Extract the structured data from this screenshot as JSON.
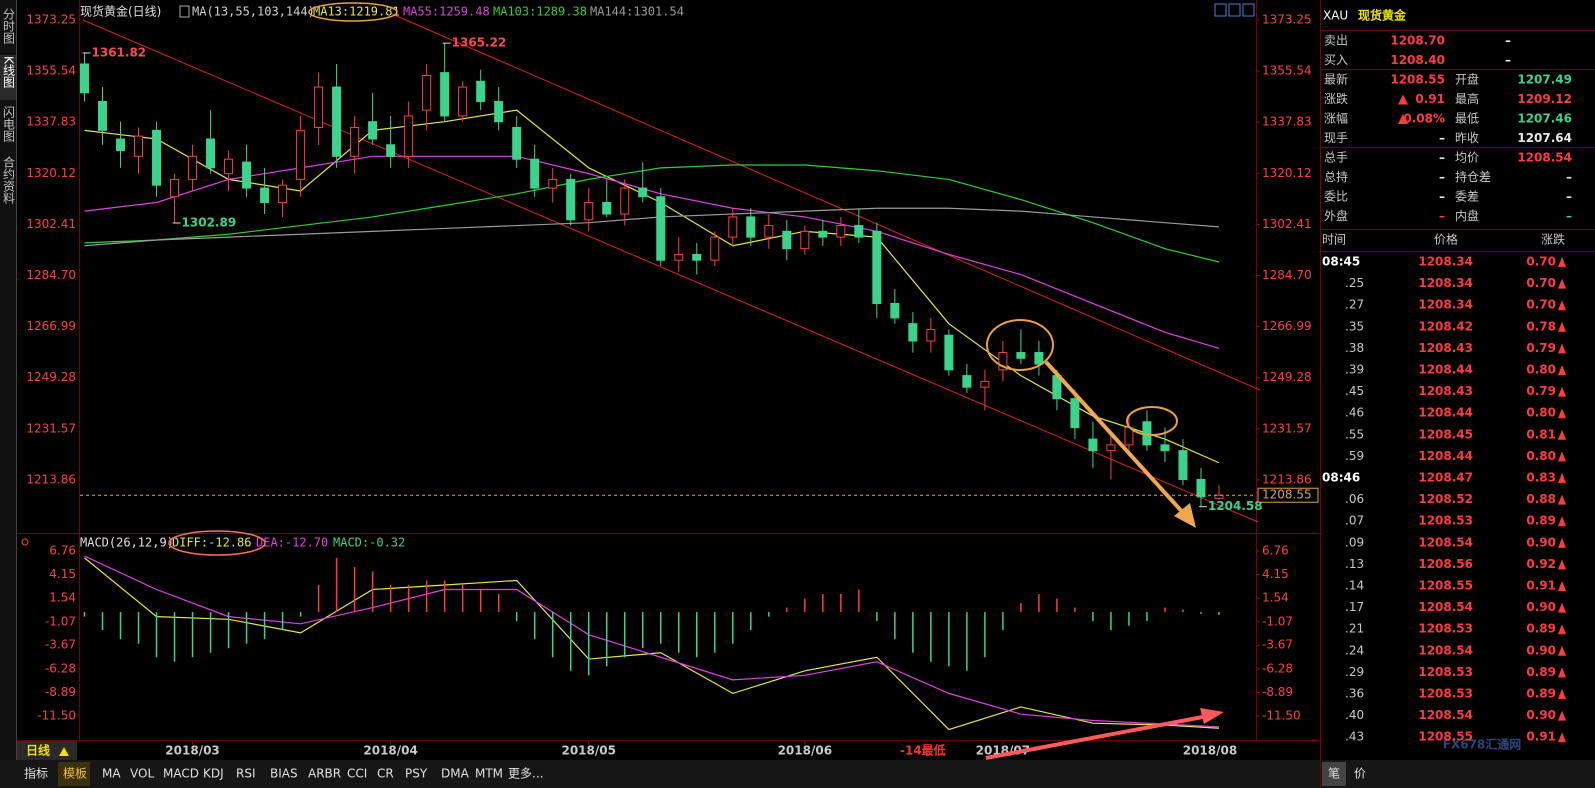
{
  "header": {
    "title": "现货黄金(日线)",
    "indicator": "MA(13,55,103,144)"
  },
  "toolbar": [
    "分时图",
    "K线图",
    "闪电图",
    "合约资料"
  ],
  "chart_data": [
    {
      "type": "candlestick",
      "x": [
        0,
        2,
        4,
        6,
        8,
        10,
        12,
        14,
        16,
        18,
        20,
        22,
        24,
        26,
        28,
        30,
        32,
        34,
        36,
        38,
        40,
        42,
        44,
        46,
        48,
        50,
        52,
        54,
        56,
        58,
        60,
        62,
        64,
        66,
        68,
        70,
        72,
        74,
        76,
        78,
        80,
        82,
        84,
        86,
        88,
        90,
        92,
        94,
        96,
        98,
        100,
        102,
        104,
        106,
        108,
        110,
        112,
        114,
        116,
        118,
        120,
        122,
        124,
        126
      ],
      "open": [
        1358,
        1345,
        1332,
        1326,
        1335,
        1312,
        1318,
        1332,
        1320,
        1324,
        1315,
        1310,
        1318,
        1336,
        1350,
        1326,
        1338,
        1330,
        1326,
        1342,
        1355,
        1340,
        1352,
        1345,
        1336,
        1325,
        1315,
        1318,
        1304,
        1310,
        1306,
        1315,
        1312,
        1290,
        1292,
        1290,
        1298,
        1305,
        1298,
        1300,
        1294,
        1300,
        1298,
        1302,
        1300,
        1275,
        1268,
        1262,
        1264,
        1250,
        1246,
        1252,
        1258,
        1258,
        1250,
        1242,
        1228,
        1224,
        1226,
        1234,
        1226,
        1224,
        1214,
        1207.5
      ],
      "high": [
        1361.82,
        1350,
        1338,
        1336,
        1338,
        1320,
        1330,
        1342,
        1328,
        1330,
        1322,
        1318,
        1340,
        1355,
        1358,
        1340,
        1348,
        1340,
        1345,
        1358,
        1365.22,
        1352,
        1356,
        1350,
        1340,
        1330,
        1322,
        1320,
        1315,
        1318,
        1318,
        1324,
        1315,
        1298,
        1296,
        1300,
        1308,
        1308,
        1306,
        1304,
        1302,
        1304,
        1305,
        1308,
        1303,
        1280,
        1272,
        1270,
        1266,
        1254,
        1252,
        1262,
        1266,
        1262,
        1252,
        1245,
        1234,
        1230,
        1236,
        1238,
        1232,
        1228,
        1218,
        1212
      ],
      "low": [
        1345,
        1330,
        1322,
        1320,
        1312,
        1302.89,
        1314,
        1320,
        1314,
        1312,
        1306,
        1305,
        1312,
        1330,
        1322,
        1320,
        1330,
        1322,
        1322,
        1335,
        1338,
        1338,
        1342,
        1335,
        1322,
        1312,
        1310,
        1302,
        1300,
        1305,
        1302,
        1310,
        1288,
        1286,
        1285,
        1288,
        1295,
        1295,
        1294,
        1290,
        1292,
        1295,
        1295,
        1296,
        1270,
        1268,
        1258,
        1258,
        1250,
        1244,
        1238,
        1248,
        1254,
        1250,
        1238,
        1228,
        1218,
        1214,
        1222,
        1224,
        1220,
        1212,
        1204.58,
        1207
      ],
      "close": [
        1348,
        1335,
        1328,
        1333,
        1316,
        1318,
        1326,
        1322,
        1325,
        1315,
        1310,
        1316,
        1335,
        1350,
        1326,
        1336,
        1332,
        1326,
        1340,
        1354,
        1340,
        1350,
        1345,
        1338,
        1325,
        1315,
        1318,
        1304,
        1310,
        1306,
        1315,
        1312,
        1290,
        1292,
        1290,
        1298,
        1305,
        1298,
        1302,
        1294,
        1300,
        1298,
        1302,
        1298,
        1275,
        1270,
        1262,
        1266,
        1252,
        1246,
        1248,
        1258,
        1256,
        1254,
        1242,
        1232,
        1224,
        1226,
        1232,
        1226,
        1224,
        1214,
        1208,
        1208.55
      ],
      "up_color": "#ff3c3c",
      "down_color": "#3ad48a",
      "series": [
        {
          "name": "MA13:1219.81",
          "color": "#e6e642",
          "x": [
            0,
            8,
            16,
            24,
            32,
            40,
            48,
            56,
            64,
            72,
            80,
            88,
            96,
            104,
            112,
            120,
            126
          ],
          "values": [
            1335,
            1332,
            1318,
            1314,
            1335,
            1338,
            1342,
            1322,
            1310,
            1295,
            1300,
            1298,
            1268,
            1250,
            1236,
            1228,
            1219.81
          ]
        },
        {
          "name": "MA55:1259.48",
          "color": "#e040e0",
          "x": [
            0,
            8,
            16,
            24,
            32,
            40,
            48,
            56,
            64,
            72,
            80,
            88,
            96,
            104,
            112,
            120,
            126
          ],
          "values": [
            1307,
            1310,
            1318,
            1322,
            1326,
            1326,
            1326,
            1320,
            1313,
            1308,
            1305,
            1300,
            1292,
            1285,
            1275,
            1265,
            1259.48
          ]
        },
        {
          "name": "MA103:1289.38",
          "color": "#2ed02e",
          "x": [
            0,
            8,
            16,
            24,
            32,
            40,
            48,
            56,
            64,
            72,
            80,
            88,
            96,
            104,
            112,
            120,
            126
          ],
          "values": [
            1296,
            1297,
            1299,
            1302,
            1305,
            1309,
            1313,
            1318,
            1322,
            1323,
            1323,
            1321,
            1318,
            1311,
            1303,
            1294,
            1289.38
          ]
        },
        {
          "name": "MA144:1301.54",
          "color": "#9a9a9a",
          "x": [
            0,
            8,
            16,
            24,
            32,
            40,
            48,
            56,
            64,
            72,
            80,
            88,
            96,
            104,
            112,
            120,
            126
          ],
          "values": [
            1295,
            1297,
            1298,
            1299,
            1300,
            1301,
            1302,
            1303,
            1305,
            1306,
            1307,
            1308,
            1308,
            1307,
            1305,
            1303,
            1301.54
          ]
        }
      ],
      "annotations": [
        {
          "x": 0,
          "value": 1361.82,
          "color": "#ff4a4a"
        },
        {
          "x": 40,
          "value": 1365.22,
          "color": "#ff4a4a"
        },
        {
          "x": 10,
          "value": 1302.89,
          "color": "#3ad48a"
        },
        {
          "x": 124,
          "value": 1204.58,
          "color": "#3ad48a"
        }
      ],
      "last_price": 1208.55,
      "xlim": [
        -0.5,
        130
      ],
      "xticks": [
        {
          "value": 12,
          "label": "2018/03"
        },
        {
          "value": 34,
          "label": "2018/04"
        },
        {
          "value": 56,
          "label": "2018/05"
        },
        {
          "value": 80,
          "label": "2018/06"
        },
        {
          "value": 102,
          "label": "2018/07"
        },
        {
          "value": 125,
          "label": "2018/08"
        }
      ],
      "ylim": [
        1196.5,
        1377.4
      ],
      "yticks": [
        1373.25,
        1355.54,
        1337.83,
        1320.12,
        1302.41,
        {
          "value": 1284.7,
          "label": "1284.70"
        },
        1266.99,
        1249.28,
        1231.57,
        1213.86
      ]
    },
    {
      "type": "macd",
      "title": "MACD(26,12,9)",
      "x": [
        0,
        2,
        4,
        6,
        8,
        10,
        12,
        14,
        16,
        18,
        20,
        22,
        24,
        26,
        28,
        30,
        32,
        34,
        36,
        38,
        40,
        42,
        44,
        46,
        48,
        50,
        52,
        54,
        56,
        58,
        60,
        62,
        64,
        66,
        68,
        70,
        72,
        74,
        76,
        78,
        80,
        82,
        84,
        86,
        88,
        90,
        92,
        94,
        96,
        98,
        100,
        102,
        104,
        106,
        108,
        110,
        112,
        114,
        116,
        118,
        120,
        122,
        124,
        126
      ],
      "values": [
        -0.5,
        -2,
        -3,
        -3.5,
        -5,
        -5.5,
        -5,
        -4.5,
        -4,
        -3.5,
        -3,
        -2,
        -0.5,
        3,
        6,
        5,
        4.5,
        3,
        3,
        3.5,
        3.5,
        3,
        2.5,
        2,
        -1,
        -3,
        -5,
        -6.5,
        -7,
        -6,
        -5,
        -4,
        -3.5,
        -4.5,
        -5,
        -4.5,
        -3.5,
        -2,
        -0.5,
        0.5,
        1.5,
        2,
        2,
        2.5,
        -1,
        -3,
        -4.5,
        -5.5,
        -6,
        -6.5,
        -5,
        -2,
        1,
        2,
        1.5,
        0.5,
        -1,
        -2,
        -1.5,
        -1,
        0.5,
        0.3,
        -0.2,
        -0.32
      ],
      "macd_label": "MACD:-0.32",
      "up_color": "#ff3c3c",
      "down_color": "#3ad48a",
      "series": [
        {
          "name": "DIFF:-12.86",
          "color": "#e6e642",
          "x": [
            0,
            8,
            16,
            24,
            32,
            40,
            48,
            56,
            64,
            72,
            80,
            88,
            96,
            104,
            112,
            120,
            126
          ],
          "values": [
            6.0,
            -0.5,
            -0.8,
            -2.3,
            2.5,
            3.0,
            3.5,
            -5.2,
            -4.5,
            -9.0,
            -6.5,
            -5.0,
            -13.0,
            -10.5,
            -12.3,
            -12.5,
            -12.86
          ]
        },
        {
          "name": "DEA:-12.70",
          "color": "#e040e0",
          "x": [
            0,
            8,
            16,
            24,
            32,
            40,
            48,
            56,
            64,
            72,
            80,
            88,
            96,
            104,
            112,
            120,
            126
          ],
          "values": [
            6.2,
            2.5,
            -0.5,
            -1.3,
            0.5,
            2.5,
            2.5,
            -2.5,
            -5.0,
            -7.5,
            -7.0,
            -5.5,
            -9.0,
            -11.3,
            -12.0,
            -12.4,
            -12.7
          ]
        }
      ],
      "xlim": [
        -0.5,
        130
      ],
      "ylim": [
        -14.16,
        7.98
      ],
      "yticks": [
        6.76,
        4.15,
        1.54,
        -1.07,
        -3.67,
        -6.28,
        -8.89,
        {
          "value": -11.5,
          "label": "-11.50"
        }
      ]
    }
  ],
  "axis_note": "-14最低",
  "period": "日线",
  "quote": {
    "symbol": "XAU",
    "name": "现货黄金",
    "rows": [
      [
        "卖出",
        "1208.70",
        "–"
      ],
      [
        "买入",
        "1208.40",
        "–"
      ],
      [
        "最新",
        "1208.55",
        "开盘",
        "1207.49"
      ],
      [
        "涨跌",
        "0.91",
        "最高",
        "1209.12"
      ],
      [
        "涨幅",
        "0.08%",
        "最低",
        "1207.46"
      ],
      [
        "现手",
        "–",
        "昨收",
        "1207.64"
      ],
      [
        "总手",
        "–",
        "均价",
        "1208.54"
      ],
      [
        "总持",
        "–",
        "持仓差",
        "–"
      ],
      [
        "委比",
        "–",
        "委差",
        "–"
      ],
      [
        "外盘",
        "–",
        "内盘",
        "–"
      ]
    ]
  },
  "ticks": {
    "headers": [
      "时间",
      "价格",
      "涨跌"
    ],
    "rows": [
      [
        "08:45",
        "1208.34",
        "0.70"
      ],
      [
        ".25",
        "1208.34",
        "0.70"
      ],
      [
        ".27",
        "1208.34",
        "0.70"
      ],
      [
        ".35",
        "1208.42",
        "0.78"
      ],
      [
        ".38",
        "1208.43",
        "0.79"
      ],
      [
        ".39",
        "1208.44",
        "0.80"
      ],
      [
        ".45",
        "1208.43",
        "0.79"
      ],
      [
        ".46",
        "1208.44",
        "0.80"
      ],
      [
        ".55",
        "1208.45",
        "0.81"
      ],
      [
        ".59",
        "1208.44",
        "0.80"
      ],
      [
        "08:46",
        "1208.47",
        "0.83"
      ],
      [
        ".06",
        "1208.52",
        "0.88"
      ],
      [
        ".07",
        "1208.53",
        "0.89"
      ],
      [
        ".09",
        "1208.54",
        "0.90"
      ],
      [
        ".13",
        "1208.56",
        "0.92"
      ],
      [
        ".14",
        "1208.55",
        "0.91"
      ],
      [
        ".17",
        "1208.54",
        "0.90"
      ],
      [
        ".21",
        "1208.53",
        "0.89"
      ],
      [
        ".24",
        "1208.54",
        "0.90"
      ],
      [
        ".29",
        "1208.53",
        "0.89"
      ],
      [
        ".36",
        "1208.53",
        "0.89"
      ],
      [
        ".40",
        "1208.54",
        "0.90"
      ],
      [
        ".43",
        "1208.55",
        "0.91"
      ]
    ]
  },
  "tabs": [
    "指标",
    "模板",
    "MA",
    "VOL",
    "MACD",
    "KDJ",
    "RSI",
    "BIAS",
    "ARBR",
    "CCI",
    "CR",
    "PSY",
    "DMA",
    "MTM",
    "更多..."
  ],
  "side_tabs": [
    "笔",
    "价"
  ],
  "watermark": "FX678汇通网"
}
